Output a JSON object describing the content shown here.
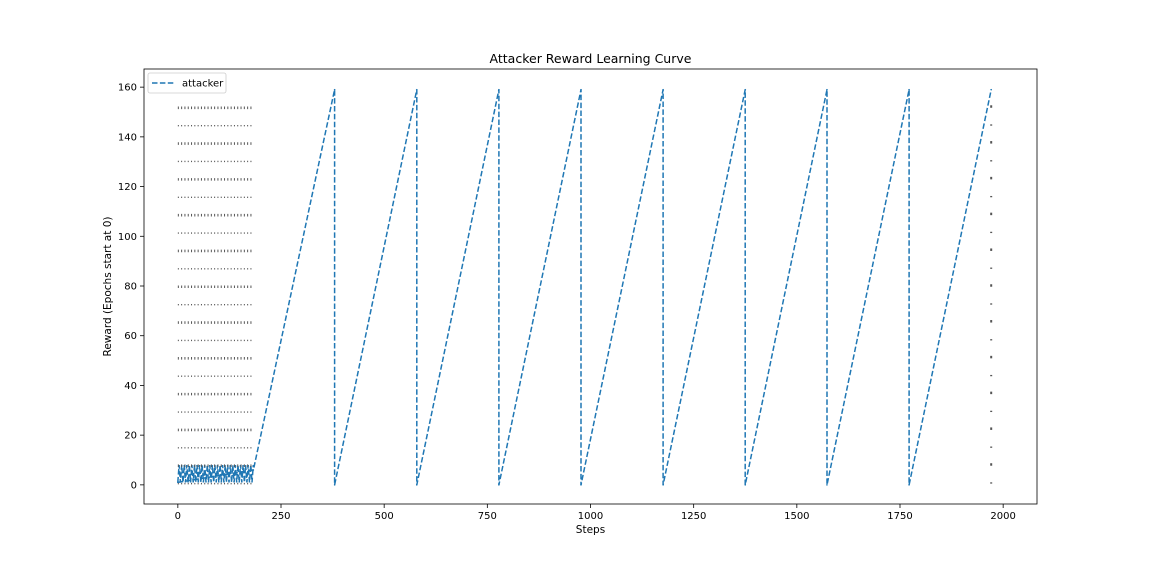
{
  "chart_data": {
    "type": "line",
    "title": "Attacker Reward Learning Curve",
    "xlabel": "Steps",
    "ylabel": "Reward (Epochs start at 0)",
    "xlim": [
      -82,
      2082
    ],
    "ylim": [
      -7.7,
      167.3
    ],
    "xticks": [
      0,
      250,
      500,
      750,
      1000,
      1250,
      1500,
      1750,
      2000
    ],
    "yticks": [
      0,
      20,
      40,
      60,
      80,
      100,
      120,
      140,
      160
    ],
    "grid": false,
    "legend_position": "top-left",
    "series": [
      {
        "name": "attacker",
        "color": "#1f77b4",
        "style": "dashed",
        "x": [
          0,
          183,
          380,
          380,
          579,
          579,
          778,
          778,
          977,
          977,
          1176,
          1176,
          1375,
          1375,
          1573,
          1573,
          1772,
          1772,
          1971
        ],
        "y": [
          1,
          6,
          159,
          0,
          159,
          0,
          159,
          0,
          159,
          0,
          159,
          0,
          159,
          0,
          159,
          0,
          159,
          0,
          159
        ]
      }
    ]
  }
}
